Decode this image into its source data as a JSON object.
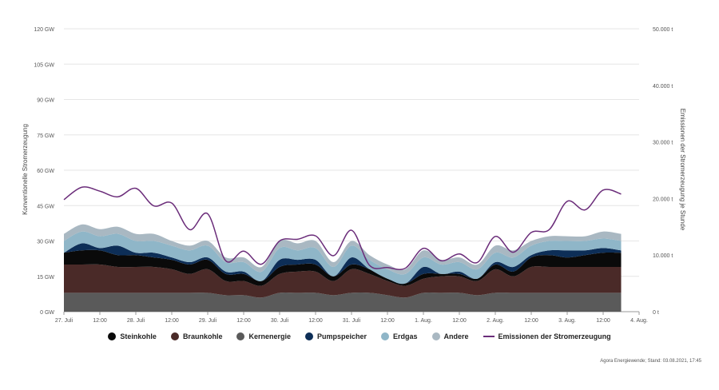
{
  "chart_data": {
    "type": "area",
    "title": "",
    "ylabel_left": "Konventionelle Stromerzeugung",
    "ylabel_right": "Emissionen der Stromerzeugung je Stunde",
    "y_left_ticks": [
      "0 GW",
      "15 GW",
      "30 GW",
      "45 GW",
      "60 GW",
      "75 GW",
      "90 GW",
      "105 GW",
      "120 GW"
    ],
    "y_left_range": [
      0,
      120
    ],
    "y_right_ticks": [
      "0 t",
      "10.000 t",
      "20.000 t",
      "30.000 t",
      "40.000 t",
      "50.000 t"
    ],
    "y_right_range": [
      0,
      50000
    ],
    "x_range_hours": [
      0,
      192
    ],
    "x_ticks": [
      {
        "h": 0,
        "label": "27. Juli"
      },
      {
        "h": 12,
        "label": "12:00"
      },
      {
        "h": 24,
        "label": "28. Juli"
      },
      {
        "h": 36,
        "label": "12:00"
      },
      {
        "h": 48,
        "label": "29. Juli"
      },
      {
        "h": 60,
        "label": "12:00"
      },
      {
        "h": 72,
        "label": "30. Juli"
      },
      {
        "h": 84,
        "label": "12:00"
      },
      {
        "h": 96,
        "label": "31. Juli"
      },
      {
        "h": 108,
        "label": "12:00"
      },
      {
        "h": 120,
        "label": "1. Aug."
      },
      {
        "h": 132,
        "label": "12:00"
      },
      {
        "h": 144,
        "label": "2. Aug."
      },
      {
        "h": 156,
        "label": "12:00"
      },
      {
        "h": 168,
        "label": "3. Aug."
      },
      {
        "h": 180,
        "label": "12:00"
      },
      {
        "h": 192,
        "label": "4. Aug."
      }
    ],
    "x_hours": [
      0,
      6,
      12,
      18,
      24,
      30,
      36,
      42,
      48,
      54,
      60,
      66,
      72,
      78,
      84,
      90,
      96,
      102,
      108,
      114,
      120,
      126,
      132,
      138,
      144,
      150,
      156,
      162,
      168,
      174,
      180,
      186
    ],
    "series": [
      {
        "name": "Kernenergie",
        "key": "kernenergie",
        "color": "#5a5a5a",
        "values": [
          8,
          8,
          8,
          8,
          8,
          8,
          8,
          8,
          8,
          7,
          7,
          6,
          8,
          8,
          8,
          7,
          8,
          8,
          7,
          6,
          8,
          8,
          8,
          7,
          8,
          8,
          8,
          8,
          8,
          8,
          8,
          8
        ]
      },
      {
        "name": "Braunkohle",
        "key": "braunkohle",
        "color": "#4a2a28",
        "values": [
          12,
          12,
          12,
          11,
          11,
          11,
          10,
          8,
          10,
          6,
          6,
          5,
          8,
          9,
          9,
          6,
          10,
          8,
          6,
          5,
          6,
          7,
          7,
          6,
          10,
          7,
          11,
          11,
          11,
          11,
          11,
          11
        ]
      },
      {
        "name": "Steinkohle",
        "key": "steinkohle",
        "color": "#0a0a0a",
        "values": [
          5,
          6,
          6,
          5,
          5,
          4,
          4,
          4,
          4,
          3,
          3,
          2,
          3,
          3,
          3,
          2,
          2,
          2,
          1,
          1,
          2,
          1,
          1,
          1,
          2,
          2,
          4,
          5,
          4,
          5,
          6,
          6
        ]
      },
      {
        "name": "Pumpspeicher",
        "key": "pumpspeicher",
        "color": "#0d2e57",
        "values": [
          0,
          3,
          1,
          4,
          1,
          2,
          1,
          1,
          1,
          1,
          1,
          0,
          3,
          2,
          2,
          0,
          3,
          0,
          0,
          0,
          3,
          0,
          1,
          0,
          1,
          2,
          1,
          2,
          3,
          2,
          2,
          1
        ]
      },
      {
        "name": "Erdgas",
        "key": "erdgas",
        "color": "#8fb6c8",
        "values": [
          5,
          5,
          5,
          5,
          5,
          5,
          5,
          5,
          5,
          4,
          4,
          4,
          5,
          4,
          5,
          4,
          5,
          4,
          4,
          4,
          4,
          4,
          4,
          4,
          4,
          4,
          4,
          4,
          4,
          4,
          4,
          4
        ]
      },
      {
        "name": "Andere",
        "key": "andere",
        "color": "#a9b8c2",
        "values": [
          3,
          3,
          3,
          3,
          3,
          3,
          2,
          2,
          2,
          2,
          2,
          2,
          3,
          3,
          3,
          2,
          2,
          2,
          2,
          2,
          3,
          2,
          2,
          2,
          3,
          3,
          2,
          2,
          2,
          2,
          3,
          3
        ]
      }
    ],
    "emissions": {
      "name": "Emissionen der Stromerzeugung",
      "color": "#6b2d7a",
      "values": [
        19800,
        22000,
        21300,
        20300,
        21800,
        18700,
        19200,
        14500,
        17300,
        9000,
        10700,
        8400,
        12500,
        12800,
        13400,
        9900,
        14400,
        8200,
        7800,
        7700,
        11200,
        9000,
        10200,
        8700,
        13300,
        10500,
        14000,
        14500,
        19500,
        18000,
        21500,
        20800
      ]
    },
    "legend": [
      "Steinkohle",
      "Braunkohle",
      "Kernenergie",
      "Pumpspeicher",
      "Erdgas",
      "Andere",
      "Emissionen der Stromerzeugung"
    ],
    "source": "Agora Energiewende; Stand: 03.08.2021, 17:45"
  },
  "colors": {
    "steinkohle": "#0a0a0a",
    "braunkohle": "#4a2a28",
    "kernenergie": "#5a5a5a",
    "pumpspeicher": "#0d2e57",
    "erdgas": "#8fb6c8",
    "andere": "#a9b8c2",
    "emissionen": "#6b2d7a"
  }
}
